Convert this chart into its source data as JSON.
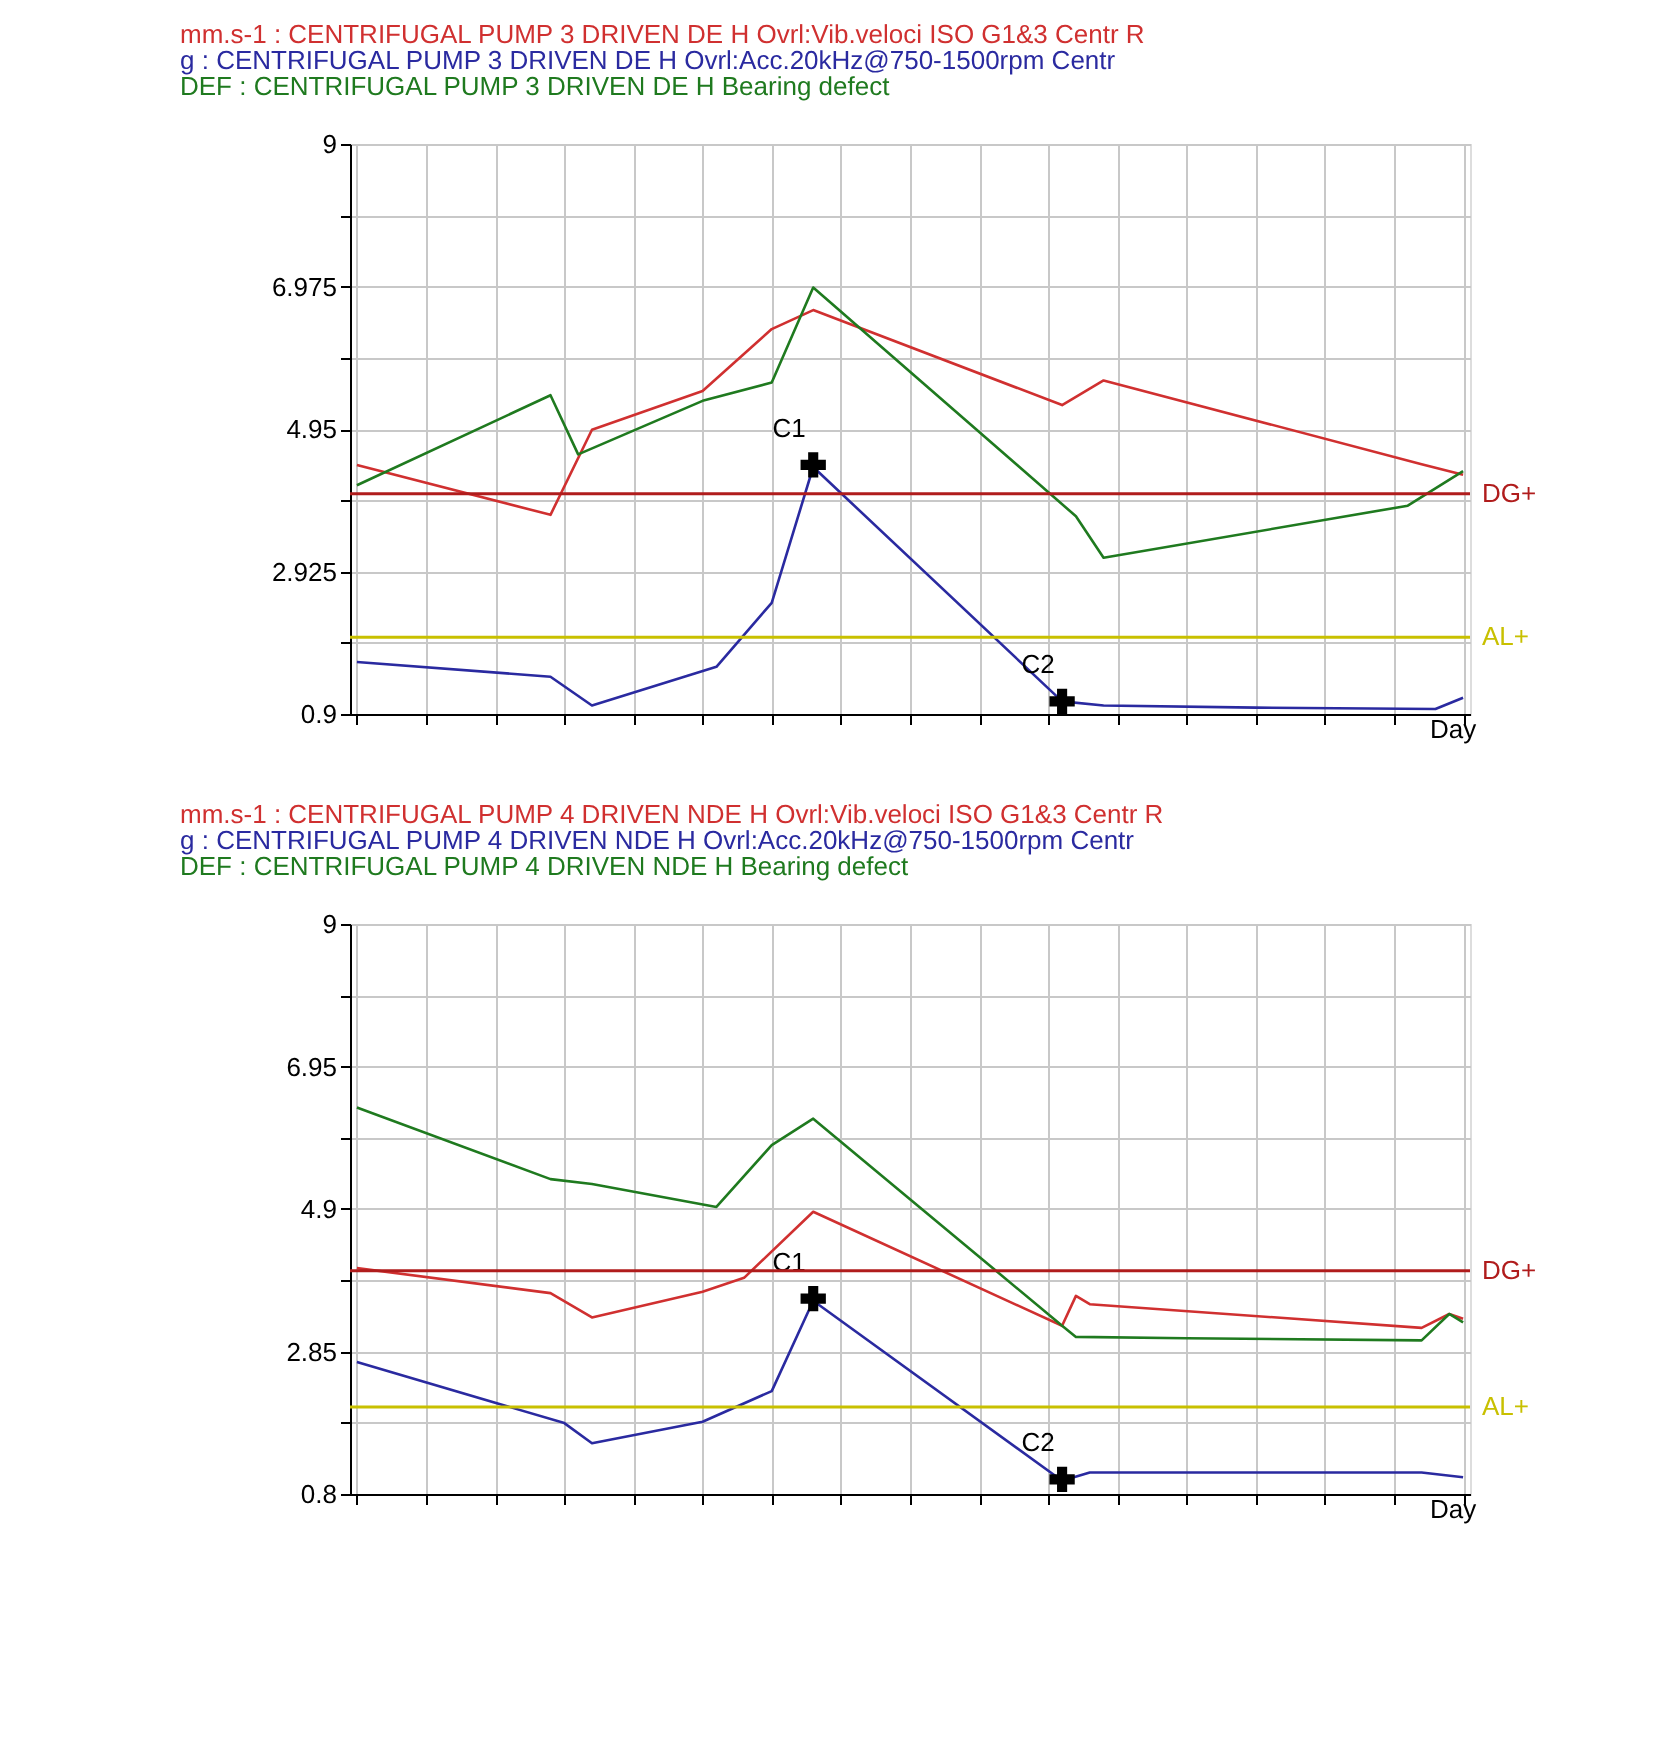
{
  "chart_data": [
    {
      "type": "line",
      "xlabel": "Day",
      "ylim": [
        0.9,
        9
      ],
      "grid": true,
      "tick_labels": "y",
      "line_style": "solid",
      "categories": [
        null,
        null,
        null,
        null,
        null,
        null,
        null,
        null,
        null,
        null,
        null,
        null,
        null,
        null,
        null,
        null,
        null,
        null,
        null,
        null,
        null,
        null,
        null,
        null,
        null,
        null,
        null,
        null,
        null,
        null,
        null,
        null,
        null,
        null,
        null,
        null,
        null,
        null,
        null,
        null,
        null,
        null,
        null,
        null,
        null,
        null,
        null,
        null,
        null,
        null,
        null,
        null,
        null,
        null,
        null,
        null,
        null,
        null,
        null,
        null,
        null,
        null,
        null,
        null,
        null,
        null,
        null,
        null,
        null,
        null,
        null,
        null,
        null,
        null,
        null,
        null,
        null,
        null,
        null,
        null,
        null
      ],
      "yticks": [
        0.9,
        {
          "value": 1.9125,
          "label": null
        },
        2.925,
        {
          "value": 3.9375,
          "label": null
        },
        4.95,
        {
          "value": 5.9625,
          "label": null
        },
        6.975,
        {
          "value": 7.9875,
          "label": null
        },
        9
      ],
      "series": [
        {
          "name": "mm.s-1 : CENTRIFUGAL PUMP 3 DRIVEN DE H Ovrl:Vib.veloci ISO G1&3 Centr R",
          "color": "#d03030",
          "values": [
            4.44,
            null,
            null,
            null,
            null,
            null,
            null,
            null,
            null,
            null,
            null,
            null,
            null,
            null,
            3.73,
            null,
            null,
            4.94,
            null,
            null,
            null,
            null,
            null,
            null,
            null,
            5.49,
            null,
            null,
            null,
            null,
            6.37,
            null,
            null,
            6.64,
            null,
            null,
            null,
            null,
            null,
            null,
            null,
            null,
            null,
            null,
            null,
            null,
            null,
            null,
            null,
            null,
            null,
            5.29,
            null,
            null,
            5.64,
            null,
            null,
            null,
            null,
            null,
            null,
            null,
            null,
            null,
            null,
            null,
            null,
            null,
            null,
            null,
            null,
            null,
            null,
            null,
            null,
            null,
            null,
            4.45,
            null,
            null,
            4.3
          ]
        },
        {
          "name": "g : CENTRIFUGAL PUMP 3 DRIVEN DE H Ovrl:Acc.20kHz@750-1500rpm Centr",
          "color": "#2a2aa0",
          "values": [
            1.64,
            null,
            null,
            null,
            null,
            null,
            null,
            null,
            null,
            null,
            null,
            null,
            null,
            null,
            1.43,
            null,
            null,
            1.02,
            null,
            null,
            null,
            null,
            null,
            null,
            null,
            null,
            1.57,
            null,
            null,
            null,
            2.48,
            null,
            null,
            4.41,
            null,
            null,
            null,
            null,
            null,
            null,
            null,
            null,
            null,
            null,
            null,
            null,
            null,
            null,
            null,
            null,
            null,
            1.08,
            null,
            null,
            1.02,
            null,
            null,
            null,
            null,
            null,
            null,
            null,
            null,
            null,
            null,
            0.99,
            null,
            null,
            null,
            null,
            null,
            null,
            null,
            null,
            null,
            null,
            null,
            null,
            0.97,
            null,
            1.13
          ]
        },
        {
          "name": "DEF : CENTRIFUGAL PUMP 3 DRIVEN DE H Bearing defect",
          "color": "#1f7a1f",
          "values": [
            4.15,
            null,
            null,
            null,
            null,
            null,
            null,
            null,
            null,
            null,
            null,
            null,
            null,
            null,
            5.43,
            null,
            4.59,
            null,
            null,
            null,
            null,
            null,
            null,
            null,
            null,
            5.35,
            null,
            null,
            null,
            null,
            5.61,
            null,
            null,
            6.96,
            null,
            null,
            null,
            null,
            null,
            null,
            null,
            null,
            null,
            null,
            null,
            null,
            null,
            null,
            null,
            null,
            null,
            null,
            3.71,
            null,
            3.12,
            null,
            null,
            null,
            null,
            null,
            null,
            null,
            null,
            null,
            null,
            null,
            null,
            null,
            null,
            null,
            null,
            null,
            null,
            null,
            null,
            null,
            3.86,
            null,
            null,
            null,
            4.35
          ]
        },
        {
          "type": "scatter",
          "marker": "cross",
          "color": "#000000",
          "values": [
            null,
            null,
            null,
            null,
            null,
            null,
            null,
            null,
            null,
            null,
            null,
            null,
            null,
            null,
            null,
            null,
            null,
            null,
            null,
            null,
            null,
            null,
            null,
            null,
            null,
            null,
            null,
            null,
            null,
            null,
            null,
            null,
            null,
            4.44,
            null,
            null,
            null,
            null,
            null,
            null,
            null,
            null,
            null,
            null,
            null,
            null,
            null,
            null,
            null,
            null,
            null,
            1.08,
            null,
            null,
            null,
            null,
            null,
            null,
            null,
            null,
            null,
            null,
            null,
            null,
            null,
            null,
            null,
            null,
            null,
            null,
            null,
            null,
            null,
            null,
            null,
            null,
            null,
            null,
            null,
            null,
            null
          ],
          "value_labels": [
            null,
            null,
            null,
            null,
            null,
            null,
            null,
            null,
            null,
            null,
            null,
            null,
            null,
            null,
            null,
            null,
            null,
            null,
            null,
            null,
            null,
            null,
            null,
            null,
            null,
            null,
            null,
            null,
            null,
            null,
            null,
            null,
            null,
            "C1",
            null,
            null,
            null,
            null,
            null,
            null,
            null,
            null,
            null,
            null,
            null,
            null,
            null,
            null,
            null,
            null,
            null,
            "C2",
            null,
            null,
            null,
            null,
            null,
            null,
            null,
            null,
            null,
            null,
            null,
            null,
            null,
            null,
            null,
            null,
            null,
            null,
            null,
            null,
            null,
            null,
            null,
            null,
            null,
            null,
            null,
            null,
            null
          ]
        }
      ],
      "ref_lines": [
        {
          "axis": "y",
          "value": 4.03,
          "label": "DG+",
          "color": "#b01c1c"
        },
        {
          "axis": "y",
          "value": 1.99,
          "label": "AL+",
          "color": "#c8c000"
        }
      ]
    },
    {
      "type": "line",
      "xlabel": "Day",
      "ylim": [
        0.8,
        9
      ],
      "grid": true,
      "tick_labels": "y",
      "line_style": "solid",
      "categories": [
        null,
        null,
        null,
        null,
        null,
        null,
        null,
        null,
        null,
        null,
        null,
        null,
        null,
        null,
        null,
        null,
        null,
        null,
        null,
        null,
        null,
        null,
        null,
        null,
        null,
        null,
        null,
        null,
        null,
        null,
        null,
        null,
        null,
        null,
        null,
        null,
        null,
        null,
        null,
        null,
        null,
        null,
        null,
        null,
        null,
        null,
        null,
        null,
        null,
        null,
        null,
        null,
        null,
        null,
        null,
        null,
        null,
        null,
        null,
        null,
        null,
        null,
        null,
        null,
        null,
        null,
        null,
        null,
        null,
        null,
        null,
        null,
        null,
        null,
        null,
        null,
        null,
        null,
        null,
        null,
        null
      ],
      "yticks": [
        0.8,
        {
          "value": 1.825,
          "label": null
        },
        2.85,
        {
          "value": 3.875,
          "label": null
        },
        4.9,
        {
          "value": 5.925,
          "label": null
        },
        6.95,
        {
          "value": 7.975,
          "label": null
        },
        9
      ],
      "series": [
        {
          "name": "mm.s-1 : CENTRIFUGAL PUMP 4 DRIVEN NDE H Ovrl:Vib.veloci ISO G1&3 Centr R",
          "color": "#d03030",
          "values": [
            4.05,
            null,
            null,
            null,
            null,
            null,
            null,
            null,
            null,
            null,
            null,
            null,
            null,
            null,
            3.69,
            null,
            null,
            3.34,
            null,
            null,
            null,
            null,
            null,
            null,
            null,
            3.71,
            null,
            null,
            3.91,
            null,
            null,
            null,
            null,
            4.86,
            null,
            null,
            null,
            null,
            null,
            null,
            null,
            null,
            null,
            null,
            null,
            null,
            null,
            null,
            null,
            null,
            null,
            3.22,
            3.65,
            3.53,
            null,
            null,
            null,
            null,
            null,
            null,
            null,
            null,
            null,
            null,
            null,
            null,
            null,
            null,
            null,
            null,
            null,
            null,
            null,
            null,
            null,
            null,
            null,
            3.19,
            null,
            3.39,
            3.32
          ]
        },
        {
          "name": "g : CENTRIFUGAL PUMP 4 DRIVEN NDE H Ovrl:Acc.20kHz@750-1500rpm Centr",
          "color": "#2a2aa0",
          "values": [
            2.7,
            null,
            null,
            null,
            null,
            null,
            null,
            null,
            null,
            null,
            null,
            null,
            null,
            null,
            null,
            1.82,
            null,
            1.53,
            null,
            null,
            null,
            null,
            null,
            null,
            null,
            1.84,
            null,
            null,
            null,
            null,
            2.28,
            null,
            null,
            3.58,
            null,
            null,
            null,
            null,
            null,
            null,
            null,
            null,
            null,
            null,
            null,
            null,
            null,
            null,
            null,
            null,
            null,
            0.99,
            null,
            1.11,
            null,
            null,
            null,
            null,
            null,
            null,
            null,
            null,
            null,
            null,
            null,
            null,
            null,
            null,
            null,
            null,
            null,
            null,
            null,
            null,
            null,
            null,
            null,
            1.11,
            null,
            null,
            1.04
          ]
        },
        {
          "name": "DEF : CENTRIFUGAL PUMP 4 DRIVEN NDE H Bearing defect",
          "color": "#1f7a1f",
          "values": [
            6.36,
            null,
            null,
            null,
            null,
            null,
            null,
            null,
            null,
            null,
            null,
            null,
            null,
            null,
            5.33,
            null,
            null,
            5.26,
            null,
            null,
            null,
            null,
            null,
            null,
            null,
            null,
            4.93,
            null,
            null,
            null,
            5.82,
            null,
            null,
            6.2,
            null,
            null,
            null,
            null,
            null,
            null,
            null,
            null,
            null,
            null,
            null,
            null,
            null,
            null,
            null,
            null,
            null,
            3.22,
            3.06,
            null,
            null,
            null,
            null,
            null,
            null,
            null,
            3.04,
            null,
            null,
            null,
            null,
            null,
            null,
            null,
            null,
            null,
            null,
            null,
            null,
            null,
            null,
            null,
            null,
            3.01,
            null,
            3.39,
            3.27
          ]
        },
        {
          "type": "scatter",
          "marker": "cross",
          "color": "#000000",
          "values": [
            null,
            null,
            null,
            null,
            null,
            null,
            null,
            null,
            null,
            null,
            null,
            null,
            null,
            null,
            null,
            null,
            null,
            null,
            null,
            null,
            null,
            null,
            null,
            null,
            null,
            null,
            null,
            null,
            null,
            null,
            null,
            null,
            null,
            3.61,
            null,
            null,
            null,
            null,
            null,
            null,
            null,
            null,
            null,
            null,
            null,
            null,
            null,
            null,
            null,
            null,
            null,
            1.01,
            null,
            null,
            null,
            null,
            null,
            null,
            null,
            null,
            null,
            null,
            null,
            null,
            null,
            null,
            null,
            null,
            null,
            null,
            null,
            null,
            null,
            null,
            null,
            null,
            null,
            null,
            null,
            null,
            null
          ],
          "value_labels": [
            null,
            null,
            null,
            null,
            null,
            null,
            null,
            null,
            null,
            null,
            null,
            null,
            null,
            null,
            null,
            null,
            null,
            null,
            null,
            null,
            null,
            null,
            null,
            null,
            null,
            null,
            null,
            null,
            null,
            null,
            null,
            null,
            null,
            "C1",
            null,
            null,
            null,
            null,
            null,
            null,
            null,
            null,
            null,
            null,
            null,
            null,
            null,
            null,
            null,
            null,
            null,
            "C2",
            null,
            null,
            null,
            null,
            null,
            null,
            null,
            null,
            null,
            null,
            null,
            null,
            null,
            null,
            null,
            null,
            null,
            null,
            null,
            null,
            null,
            null,
            null,
            null,
            null,
            null,
            null,
            null,
            null
          ]
        }
      ],
      "ref_lines": [
        {
          "axis": "y",
          "value": 4.01,
          "label": "DG+",
          "color": "#b01c1c"
        },
        {
          "axis": "y",
          "value": 2.05,
          "label": "AL+",
          "color": "#c8c000"
        }
      ]
    }
  ]
}
